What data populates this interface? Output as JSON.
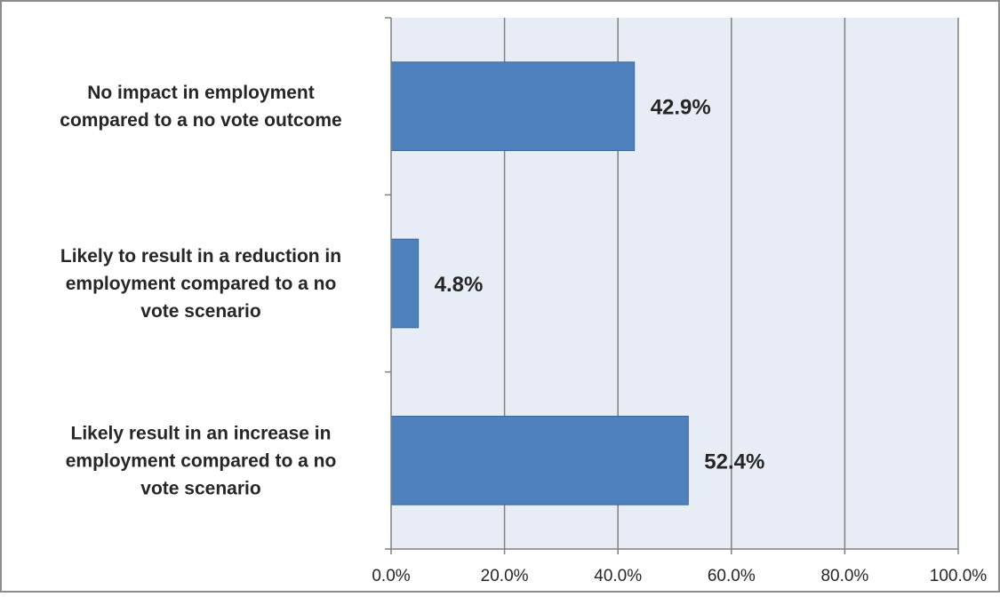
{
  "chart_data": {
    "type": "bar",
    "orientation": "horizontal",
    "categories": [
      "No  impact in employment compared to a no vote outcome",
      "Likely to result in a reduction in employment compared to a no vote scenario",
      "Likely result in an increase in employment compared to a no vote scenario"
    ],
    "category_label_lines": [
      [
        "No  impact in employment",
        "compared to a no vote outcome"
      ],
      [
        "Likely to result in a reduction in",
        "employment compared to a no",
        "vote scenario"
      ],
      [
        "Likely result in an increase in",
        "employment compared to a no",
        "vote scenario"
      ]
    ],
    "values": [
      42.9,
      4.8,
      52.4
    ],
    "data_labels": [
      "42.9%",
      "4.8%",
      "52.4%"
    ],
    "x_ticks": [
      0,
      20,
      40,
      60,
      80,
      100
    ],
    "x_tick_labels": [
      "0.0%",
      "20.0%",
      "40.0%",
      "60.0%",
      "80.0%",
      "100.0%"
    ],
    "xlim": [
      0,
      100
    ],
    "title": "",
    "xlabel": "",
    "ylabel": "",
    "grid": "vertical",
    "legend": "none",
    "colors": {
      "bar": "#4f81bd",
      "bar_edge": "#3a6799",
      "plot_background": "#e8edf5",
      "gridline": "#808080",
      "axis": "#808080",
      "frame": "#8c8c8c"
    }
  }
}
